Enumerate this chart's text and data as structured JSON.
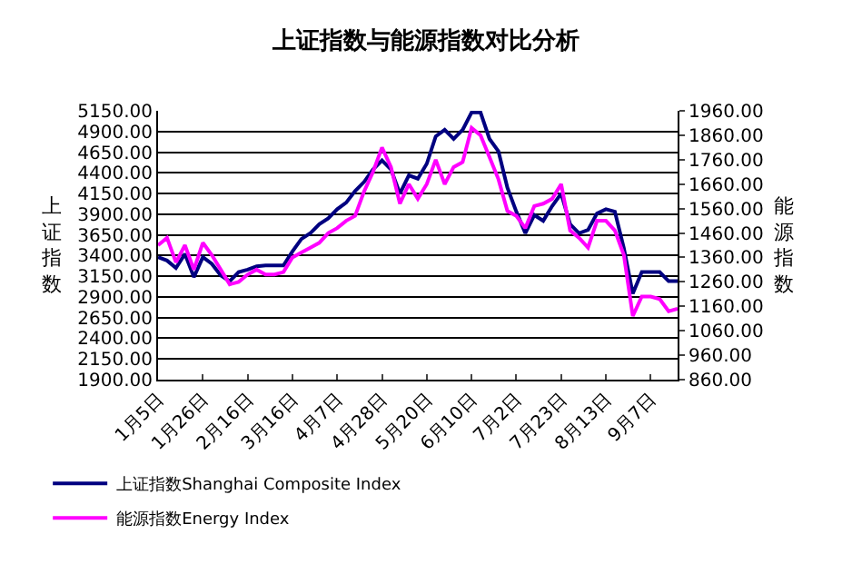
{
  "chart_data": {
    "type": "line",
    "title": "上证指数与能源指数对比分析",
    "ylabel": "上证指数",
    "y2label": "能源指数",
    "categories": [
      "1月5日",
      null,
      null,
      null,
      null,
      "1月26日",
      null,
      null,
      null,
      null,
      "2月16日",
      null,
      null,
      null,
      null,
      "3月16日",
      null,
      null,
      null,
      null,
      "4月7日",
      null,
      null,
      null,
      null,
      "4月28日",
      null,
      null,
      null,
      null,
      "5月20日",
      null,
      null,
      null,
      null,
      "6月10日",
      null,
      null,
      null,
      null,
      "7月2日",
      null,
      null,
      null,
      null,
      "7月23日",
      null,
      null,
      null,
      null,
      "8月13日",
      null,
      null,
      null,
      null,
      "9月7日",
      null,
      null,
      null
    ],
    "series": [
      {
        "name": "上证指数Shanghai Composite Index",
        "color": "#000080",
        "values": [
          3380,
          3340,
          3250,
          3420,
          3140,
          3380,
          3300,
          3160,
          3090,
          3200,
          3230,
          3270,
          3280,
          3280,
          3280,
          3450,
          3600,
          3670,
          3780,
          3850,
          3960,
          4040,
          4180,
          4290,
          4440,
          4550,
          4440,
          4150,
          4370,
          4330,
          4510,
          4840,
          4920,
          4810,
          4920,
          5130,
          5130,
          4810,
          4660,
          4220,
          3930,
          3670,
          3890,
          3820,
          4000,
          4150,
          3780,
          3670,
          3710,
          3910,
          3960,
          3930,
          3490,
          2940,
          3200,
          3200,
          3200,
          3090,
          3090
        ]
      },
      {
        "name": "能源指数Energy Index",
        "color": "#ff00ff",
        "axis": "y2",
        "values": [
          1410,
          1440,
          1340,
          1410,
          1310,
          1420,
          1370,
          1310,
          1250,
          1260,
          1290,
          1310,
          1290,
          1290,
          1300,
          1360,
          1380,
          1400,
          1420,
          1460,
          1480,
          1510,
          1530,
          1630,
          1710,
          1810,
          1730,
          1580,
          1660,
          1600,
          1660,
          1760,
          1660,
          1730,
          1750,
          1890,
          1860,
          1770,
          1680,
          1550,
          1530,
          1480,
          1570,
          1580,
          1600,
          1660,
          1470,
          1440,
          1400,
          1510,
          1510,
          1470,
          1370,
          1120,
          1200,
          1200,
          1190,
          1140,
          1150
        ]
      }
    ],
    "ylim": [
      1900,
      5150
    ],
    "yticks": [
      {
        "value": 1900,
        "label": "1900.00"
      },
      {
        "value": 2150,
        "label": "2150.00"
      },
      {
        "value": 2400,
        "label": "2400.00"
      },
      {
        "value": 2650,
        "label": "2650.00"
      },
      {
        "value": 2900,
        "label": "2900.00"
      },
      {
        "value": 3150,
        "label": "3150.00"
      },
      {
        "value": 3400,
        "label": "3400.00"
      },
      {
        "value": 3650,
        "label": "3650.00"
      },
      {
        "value": 3900,
        "label": "3900.00"
      },
      {
        "value": 4150,
        "label": "4150.00"
      },
      {
        "value": 4400,
        "label": "4400.00"
      },
      {
        "value": 4650,
        "label": "4650.00"
      },
      {
        "value": 4900,
        "label": "4900.00"
      },
      {
        "value": 5150,
        "label": "5150.00"
      }
    ],
    "y2lim": [
      860,
      1960
    ],
    "y2ticks": [
      {
        "value": 860,
        "label": "860.00"
      },
      {
        "value": 960,
        "label": "960.00"
      },
      {
        "value": 1060,
        "label": "1060.00"
      },
      {
        "value": 1160,
        "label": "1160.00"
      },
      {
        "value": 1260,
        "label": "1260.00"
      },
      {
        "value": 1360,
        "label": "1360.00"
      },
      {
        "value": 1460,
        "label": "1460.00"
      },
      {
        "value": 1560,
        "label": "1560.00"
      },
      {
        "value": 1660,
        "label": "1660.00"
      },
      {
        "value": 1760,
        "label": "1760.00"
      },
      {
        "value": 1860,
        "label": "1860.00"
      },
      {
        "value": 1960,
        "label": "1960.00"
      }
    ],
    "grid": "y",
    "legend": "bottom",
    "marker": "none",
    "line_style": "solid"
  }
}
